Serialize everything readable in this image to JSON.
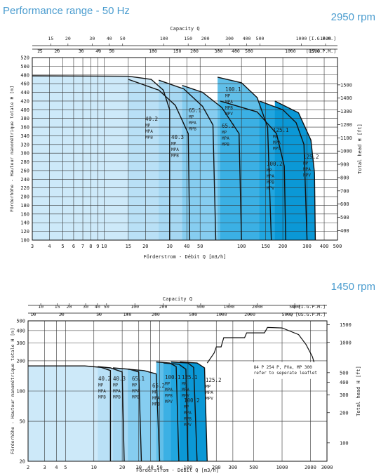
{
  "page": {
    "title": "Performance range - 50 Hz",
    "rpm_top": "2950 rpm",
    "rpm_bottom": "1450 rpm"
  },
  "chart_data": [
    {
      "type": "area",
      "speed": "2950 rpm",
      "xlabel": "Förderstrom - Débit Q [m3/h]",
      "ylabel": "Förderhöhe - Hauteur manométrique totale H [m]",
      "y2label": "Total head H [ft]",
      "top_axis_title": "Capacity Q",
      "x_scale": "log",
      "xlim": [
        3,
        500
      ],
      "ylim": [
        100,
        520
      ],
      "xticks": [
        3,
        4,
        5,
        6,
        7,
        8,
        9,
        10,
        15,
        20,
        30,
        40,
        50,
        100,
        150,
        200,
        300,
        400,
        500
      ],
      "xtick_labels": [
        "3",
        "4",
        "5",
        "6",
        "7",
        "8",
        "9",
        "10",
        "15",
        "20",
        "30",
        "40",
        "50",
        "100",
        "150",
        "200",
        "300",
        "400",
        "500"
      ],
      "yticks": [
        100,
        120,
        140,
        160,
        180,
        200,
        220,
        240,
        260,
        280,
        300,
        320,
        340,
        360,
        380,
        400,
        420,
        440,
        460,
        480,
        500,
        520
      ],
      "ytick_labels": [
        "100",
        "120",
        "140",
        "160",
        "180",
        "200",
        "220",
        "240",
        "260",
        "280",
        "300",
        "320",
        "340",
        "360",
        "380",
        "400",
        "420",
        "440",
        "460",
        "480",
        "500",
        "520"
      ],
      "ft_ticks": [
        400,
        500,
        600,
        700,
        800,
        900,
        1000,
        1100,
        1200,
        1300,
        1400,
        1500
      ],
      "ft_tick_labels": [
        "400",
        "500",
        "600",
        "700",
        "800",
        "900",
        "1000",
        "1100",
        "1200",
        "1300",
        "1400",
        "1500"
      ],
      "igpm_unit": "[I.G.P.M.]",
      "igpm_ticks": [
        15,
        20,
        30,
        40,
        50,
        100,
        150,
        200,
        300,
        400,
        500,
        1000,
        1500
      ],
      "igpm_tick_labels": [
        "15",
        "20",
        "30",
        "40",
        "50",
        "100",
        "150",
        "200",
        "300",
        "400",
        "500",
        "1000",
        "1500"
      ],
      "usgpm_unit": "[US.G.P.M.]",
      "usgpm_ticks": [
        15,
        20,
        30,
        40,
        50,
        100,
        150,
        200,
        300,
        400,
        500,
        1000,
        1500
      ],
      "usgpm_tick_labels": [
        "15",
        "20",
        "30",
        "40",
        "50",
        "100",
        "150",
        "200",
        "300",
        "400",
        "500",
        "1000",
        "1500"
      ],
      "series": [
        {
          "label_lines": [
            "40.2",
            "MP",
            "MPA",
            "MPB"
          ],
          "color": "#cde9f9",
          "curve": [
            [
              3,
              478
            ],
            [
              15,
              477
            ],
            [
              22,
              470
            ],
            [
              27,
              445
            ],
            [
              30,
              400
            ],
            [
              30,
              100
            ]
          ]
        },
        {
          "label_lines": [
            "40.3",
            "MP",
            "MPA",
            "MPB"
          ],
          "color": "#b9e0f6",
          "curve": [
            [
              15,
              470
            ],
            [
              25,
              445
            ],
            [
              33,
              410
            ],
            [
              41,
              345
            ],
            [
              42,
              100
            ]
          ]
        },
        {
          "label_lines": [
            "65.1",
            "MP",
            "MPA",
            "MPB"
          ],
          "color": "#a6d8f3",
          "curve": [
            [
              25,
              468
            ],
            [
              38,
              448
            ],
            [
              52,
              408
            ],
            [
              62,
              365
            ],
            [
              65,
              100
            ]
          ]
        },
        {
          "label_lines": [
            "65.2",
            "MP",
            "MPA",
            "MPB"
          ],
          "color": "#86cdf0",
          "curve": [
            [
              37,
              456
            ],
            [
              52,
              440
            ],
            [
              72,
              405
            ],
            [
              96,
              345
            ],
            [
              100,
              100
            ]
          ]
        },
        {
          "label_lines": [
            "100.1",
            "MP",
            "MPA",
            "MPB",
            "MPV"
          ],
          "color": "#61bfe9",
          "curve": [
            [
              67,
              475
            ],
            [
              100,
              462
            ],
            [
              130,
              428
            ],
            [
              155,
              360
            ],
            [
              165,
              100
            ]
          ]
        },
        {
          "label_lines": [
            "100.2",
            "MP",
            "MPA",
            "MPB",
            "MPV"
          ],
          "color": "#3bb0e4",
          "curve": [
            [
              70,
              420
            ],
            [
              130,
              395
            ],
            [
              180,
              345
            ],
            [
              205,
              270
            ],
            [
              210,
              100
            ]
          ]
        },
        {
          "label_lines": [
            "125.1",
            "MP",
            "MPA",
            "MPV"
          ],
          "color": "#21a6e0",
          "curve": [
            [
              135,
              420
            ],
            [
              200,
              400
            ],
            [
              250,
              370
            ],
            [
              285,
              320
            ],
            [
              300,
              100
            ]
          ]
        },
        {
          "label_lines": [
            "125.2",
            "MP",
            "MPA",
            "MPV"
          ],
          "color": "#0b98d6",
          "curve": [
            [
              175,
              420
            ],
            [
              260,
              393
            ],
            [
              320,
              330
            ],
            [
              340,
              255
            ],
            [
              345,
              100
            ]
          ]
        }
      ]
    },
    {
      "type": "area",
      "speed": "1450 rpm",
      "xlabel": "Förderstrom - Débit Q [m3/h]",
      "ylabel": "Förderhöhe - Hauteur manométrique totale H [m]",
      "y2label": "Total head H [ft]",
      "top_axis_title": "Capacity Q",
      "x_scale": "log",
      "y_scale": "log",
      "xlim": [
        2,
        3000
      ],
      "ylim": [
        20,
        500
      ],
      "xticks": [
        2,
        3,
        4,
        5,
        10,
        20,
        30,
        40,
        50,
        100,
        200,
        300,
        500,
        1000,
        2000,
        3000
      ],
      "xtick_labels": [
        "2",
        "3",
        "4",
        "5",
        "10",
        "20",
        "30",
        "40",
        "50",
        "100",
        "200",
        "300",
        "500",
        "1000",
        "2000",
        "3000"
      ],
      "yticks": [
        20,
        50,
        100,
        200,
        300,
        400,
        500
      ],
      "ytick_labels": [
        "20",
        "50",
        "100",
        "200",
        "300",
        "400",
        "500"
      ],
      "ft_ticks": [
        100,
        200,
        300,
        400,
        500,
        1000,
        1500
      ],
      "ft_tick_labels": [
        "100",
        "200",
        "300",
        "400",
        "500",
        "1000",
        "1500"
      ],
      "igpm_unit": "Q [I.G.P.M.]",
      "igpm_ticks": [
        10,
        15,
        20,
        30,
        40,
        50,
        100,
        200,
        500,
        1000,
        2000,
        5000
      ],
      "igpm_tick_labels": [
        "10",
        "15",
        "20",
        "30",
        "40",
        "50",
        "100",
        "200",
        "500",
        "1000",
        "2000",
        "5000"
      ],
      "usgpm_unit": "Q [US.G.P.M.]",
      "usgpm_ticks": [
        10,
        20,
        50,
        100,
        200,
        500,
        1000,
        2000,
        5000
      ],
      "usgpm_tick_labels": [
        "10",
        "20",
        "50",
        "100",
        "200",
        "500",
        "1000",
        "2000",
        "5000"
      ],
      "series": [
        {
          "label_lines": [
            "40.2",
            "MP",
            "MPA",
            "MPB"
          ],
          "color": "#cde9f9",
          "curve": [
            [
              2,
              178
            ],
            [
              8,
              178
            ],
            [
              12,
              172
            ],
            [
              15,
              160
            ],
            [
              15,
              20
            ]
          ]
        },
        {
          "label_lines": [
            "40.3",
            "MP",
            "MPA",
            "MPB"
          ],
          "color": "#b9e0f6",
          "curve": [
            [
              11,
              175
            ],
            [
              15,
              170
            ],
            [
              20,
              155
            ],
            [
              21,
              20
            ]
          ]
        },
        {
          "label_lines": [
            "65.1",
            "MP",
            "MPA",
            "MPB"
          ],
          "color": "#a6d8f3",
          "curve": [
            [
              16,
              170
            ],
            [
              24,
              165
            ],
            [
              30,
              155
            ],
            [
              32,
              20
            ]
          ]
        },
        {
          "label_lines": [
            "65.2",
            "MP",
            "MPA",
            "MPB"
          ],
          "color": "#86cdf0",
          "curve": [
            [
              23,
              165
            ],
            [
              34,
              160
            ],
            [
              46,
              148
            ],
            [
              50,
              20
            ]
          ]
        },
        {
          "label_lines": [
            "100.1",
            "MP",
            "MPA",
            "MPB",
            "MPV"
          ],
          "color": "#61bfe9",
          "curve": [
            [
              46,
              195
            ],
            [
              64,
              190
            ],
            [
              75,
              175
            ],
            [
              80,
              20
            ]
          ]
        },
        {
          "label_lines": [
            "100.2",
            "MP",
            "MPA",
            "MPB",
            "MPV"
          ],
          "color": "#3bb0e4",
          "curve": [
            [
              55,
              190
            ],
            [
              80,
              185
            ],
            [
              95,
              165
            ],
            [
              100,
              20
            ]
          ]
        },
        {
          "label_lines": [
            "125.1",
            "MP",
            "MPA",
            "MPV"
          ],
          "color": "#21a6e0",
          "curve": [
            [
              66,
              195
            ],
            [
              100,
              190
            ],
            [
              115,
              172
            ],
            [
              125,
              20
            ]
          ]
        },
        {
          "label_lines": [
            "125.2",
            "MP",
            "MPA",
            "MPV"
          ],
          "color": "#0b98d6",
          "curve": [
            [
              82,
              195
            ],
            [
              125,
              190
            ],
            [
              150,
              170
            ],
            [
              160,
              20
            ]
          ]
        }
      ],
      "outline": [
        [
          160,
          190
        ],
        [
          190,
          240
        ],
        [
          200,
          275
        ],
        [
          225,
          275
        ],
        [
          240,
          340
        ],
        [
          400,
          340
        ],
        [
          420,
          380
        ],
        [
          650,
          380
        ],
        [
          700,
          430
        ],
        [
          1000,
          425
        ],
        [
          1500,
          365
        ],
        [
          1800,
          290
        ],
        [
          2100,
          220
        ],
        [
          2200,
          190
        ]
      ],
      "annotation": [
        "84 P 254 P, PVa, MP 300",
        "refer to seperate leaflet"
      ],
      "annotation_anchor": [
        500,
        160
      ]
    }
  ]
}
